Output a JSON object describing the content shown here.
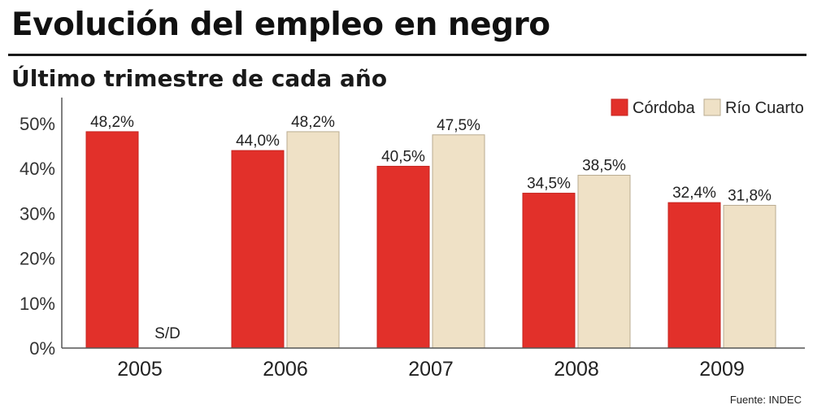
{
  "header": {
    "title": "Evolución del empleo en negro",
    "subtitle": "Último trimestre de cada año"
  },
  "footer": {
    "source": "Fuente: INDEC"
  },
  "colors": {
    "cordoba": "#e2302a",
    "rio_cuarto": "#efe1c6",
    "rio_cuarto_border": "#b9ab90",
    "axis": "#555555",
    "text": "#222222"
  },
  "chart_data": {
    "type": "bar",
    "title": "Evolución del empleo en negro",
    "subtitle": "Último trimestre de cada año",
    "xlabel": "",
    "ylabel": "",
    "categories": [
      "2005",
      "2006",
      "2007",
      "2008",
      "2009"
    ],
    "ylim": [
      0,
      50
    ],
    "yticks": [
      "0%",
      "10%",
      "20%",
      "30%",
      "40%",
      "50%"
    ],
    "series": [
      {
        "name": "Córdoba",
        "values": [
          48.2,
          44.0,
          40.5,
          34.5,
          32.4
        ],
        "labels": [
          "48,2%",
          "44,0%",
          "40,5%",
          "34,5%",
          "32,4%"
        ]
      },
      {
        "name": "Río Cuarto",
        "values": [
          null,
          48.2,
          47.5,
          38.5,
          31.8
        ],
        "labels": [
          "S/D",
          "48,2%",
          "47,5%",
          "38,5%",
          "31,8%"
        ]
      }
    ],
    "legend": "top-right",
    "grid": false
  }
}
